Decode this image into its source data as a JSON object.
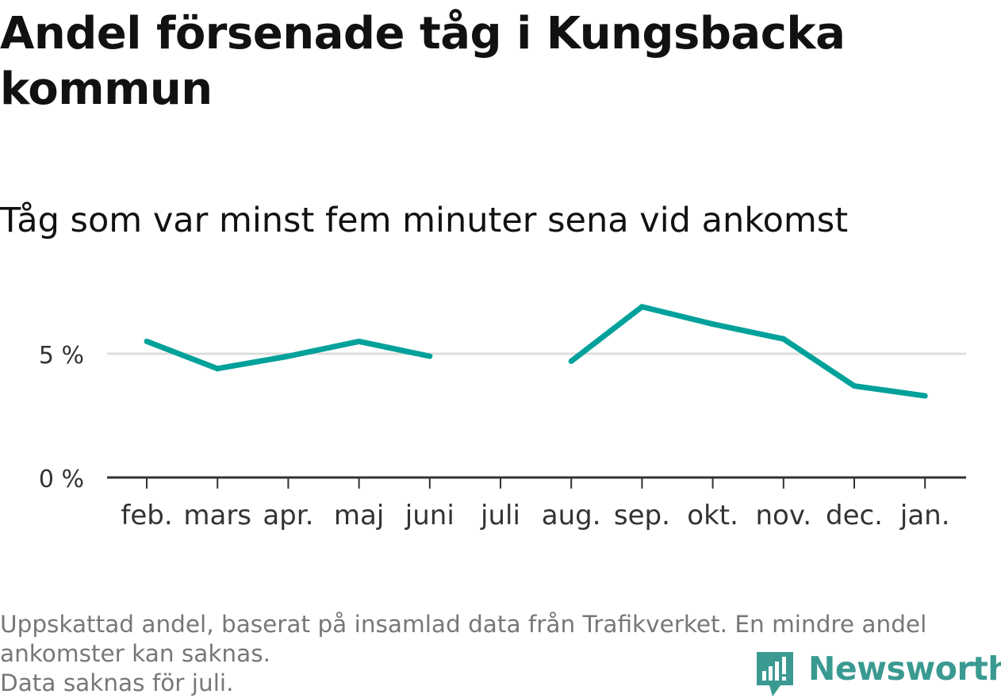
{
  "title": "Andel försenade tåg i Kungsbacka kommun",
  "subtitle": "Tåg som var minst fem minuter sena vid ankomst",
  "footnote": {
    "line1": "Uppskattad andel, baserat på insamlad data från Trafikverket. En mindre andel",
    "line2": "ankomster kan saknas.",
    "line3": "Data saknas för juli."
  },
  "brand": {
    "name": "Newsworthy",
    "icon": "newsworthy-logo-icon",
    "color": "#3a9a91"
  },
  "colors": {
    "line": "#00a19a",
    "grid": "#dddddd",
    "axis": "#333333",
    "tick_text": "#333333"
  },
  "chart_data": {
    "type": "line",
    "categories": [
      "feb.",
      "mars",
      "apr.",
      "maj",
      "juni",
      "juli",
      "aug.",
      "sep.",
      "okt.",
      "nov.",
      "dec.",
      "jan."
    ],
    "series": [
      {
        "values": [
          5.5,
          4.4,
          4.9,
          5.5,
          4.9,
          null,
          4.7,
          6.9,
          6.2,
          5.6,
          3.7,
          3.3
        ]
      }
    ],
    "yticks": [
      {
        "value": 0,
        "label": "0 %"
      },
      {
        "value": 5,
        "label": "5 %"
      }
    ],
    "ylim": [
      0,
      7.5
    ],
    "grid": true,
    "legend": "none"
  }
}
